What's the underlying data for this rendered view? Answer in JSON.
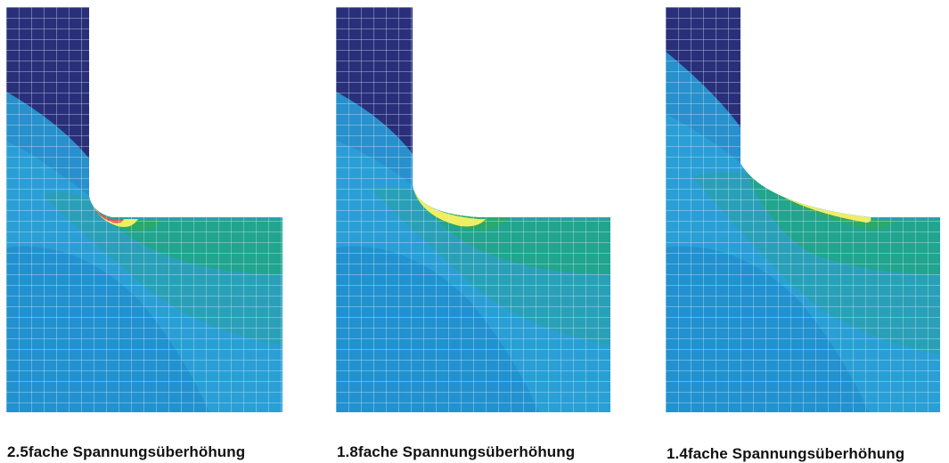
{
  "figure": {
    "panels": [
      {
        "id": "panel-1",
        "caption": "2.5fache Spannungsüberhöhung",
        "stress_concentration_factor": 2.5,
        "fillet": "small"
      },
      {
        "id": "panel-2",
        "caption": "1.8fache Spannungsüberhöhung",
        "stress_concentration_factor": 1.8,
        "fillet": "medium"
      },
      {
        "id": "panel-3",
        "caption": "1.4fache Spannungsüberhöhung",
        "stress_concentration_factor": 1.4,
        "fillet": "large"
      }
    ]
  },
  "colors": {
    "contour_max": "#e0505a",
    "contour_high": "#f0ee60",
    "contour_mid": "#2aa96a",
    "contour_teal": "#1fa0a6",
    "contour_blue": "#2a9fd6",
    "contour_low": "#1e5fb0",
    "contour_min": "#2a2f7a",
    "mesh_line": "#cfe6f4"
  }
}
